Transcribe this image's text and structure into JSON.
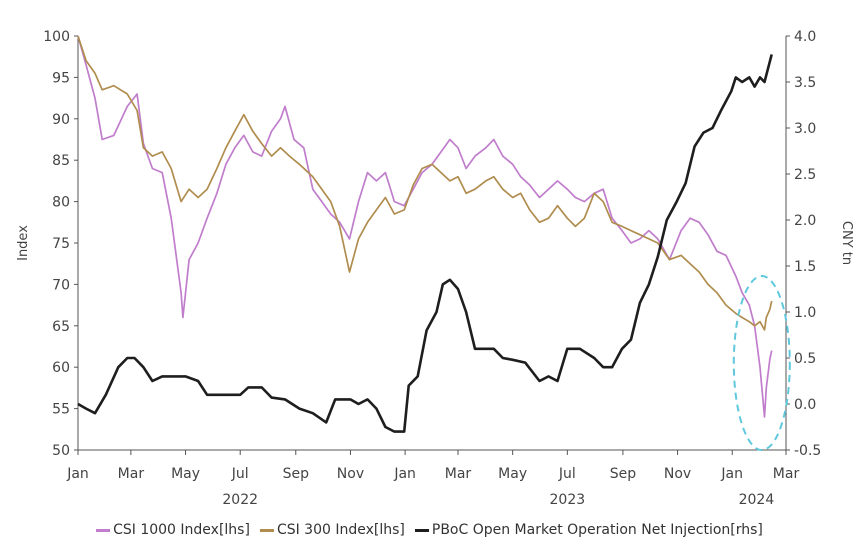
{
  "chart_data": {
    "type": "line",
    "title": "",
    "ylabel_left": "Index",
    "ylabel_right": "CNY tn",
    "ylim_left": [
      50,
      100
    ],
    "ylim_right": [
      -0.5,
      4.0
    ],
    "yticks_left": [
      "100",
      "95",
      "90",
      "85",
      "80",
      "75",
      "70",
      "65",
      "60",
      "55",
      "50"
    ],
    "yticks_right": [
      "4.0",
      "3.5",
      "3.0",
      "2.5",
      "2.0",
      "1.5",
      "1.0",
      "0.5",
      "0.0",
      "-0.5"
    ],
    "xticks": [
      "Jan",
      "Mar",
      "May",
      "Jul",
      "Sep",
      "Nov",
      "Jan",
      "Mar",
      "May",
      "Jul",
      "Sep",
      "Nov",
      "Jan",
      "Mar"
    ],
    "year_labels": [
      "2022",
      "2023",
      "2024"
    ],
    "xlim": [
      "2022-01-01",
      "2024-03-01"
    ],
    "grid": false,
    "legend_position": "bottom",
    "highlight": "dashed ellipse around Jan–Feb 2024",
    "series": [
      {
        "name": "CSI 1000 Index[lhs]",
        "axis": "left",
        "color": "#c07dcc",
        "points": [
          [
            "2022-01-01",
            100
          ],
          [
            "2022-01-10",
            96.5
          ],
          [
            "2022-01-20",
            92.5
          ],
          [
            "2022-01-28",
            87.5
          ],
          [
            "2022-02-10",
            88
          ],
          [
            "2022-02-25",
            91.5
          ],
          [
            "2022-03-08",
            93
          ],
          [
            "2022-03-15",
            87
          ],
          [
            "2022-03-25",
            84
          ],
          [
            "2022-04-05",
            83.5
          ],
          [
            "2022-04-15",
            78
          ],
          [
            "2022-04-26",
            69
          ],
          [
            "2022-04-28",
            66
          ],
          [
            "2022-05-05",
            73
          ],
          [
            "2022-05-15",
            75
          ],
          [
            "2022-05-25",
            78
          ],
          [
            "2022-06-05",
            81
          ],
          [
            "2022-06-15",
            84.5
          ],
          [
            "2022-06-25",
            86.5
          ],
          [
            "2022-07-05",
            88
          ],
          [
            "2022-07-15",
            86
          ],
          [
            "2022-07-25",
            85.5
          ],
          [
            "2022-08-05",
            88.5
          ],
          [
            "2022-08-15",
            90
          ],
          [
            "2022-08-20",
            91.5
          ],
          [
            "2022-08-30",
            87.5
          ],
          [
            "2022-09-10",
            86.5
          ],
          [
            "2022-09-20",
            81.5
          ],
          [
            "2022-09-30",
            80
          ],
          [
            "2022-10-10",
            78.5
          ],
          [
            "2022-10-20",
            77.5
          ],
          [
            "2022-10-31",
            75.5
          ],
          [
            "2022-11-10",
            80
          ],
          [
            "2022-11-20",
            83.5
          ],
          [
            "2022-11-30",
            82.5
          ],
          [
            "2022-12-10",
            83.5
          ],
          [
            "2022-12-20",
            80
          ],
          [
            "2022-12-31",
            79.5
          ],
          [
            "2023-01-10",
            81.5
          ],
          [
            "2023-01-20",
            83.5
          ],
          [
            "2023-01-31",
            84.5
          ],
          [
            "2023-02-10",
            86
          ],
          [
            "2023-02-20",
            87.5
          ],
          [
            "2023-03-01",
            86.5
          ],
          [
            "2023-03-10",
            84
          ],
          [
            "2023-03-20",
            85.5
          ],
          [
            "2023-04-01",
            86.5
          ],
          [
            "2023-04-10",
            87.5
          ],
          [
            "2023-04-20",
            85.5
          ],
          [
            "2023-05-01",
            84.5
          ],
          [
            "2023-05-10",
            83
          ],
          [
            "2023-05-20",
            82
          ],
          [
            "2023-05-31",
            80.5
          ],
          [
            "2023-06-10",
            81.5
          ],
          [
            "2023-06-20",
            82.5
          ],
          [
            "2023-07-01",
            81.5
          ],
          [
            "2023-07-10",
            80.5
          ],
          [
            "2023-07-20",
            80
          ],
          [
            "2023-07-31",
            81
          ],
          [
            "2023-08-10",
            81.5
          ],
          [
            "2023-08-20",
            78
          ],
          [
            "2023-08-31",
            76.5
          ],
          [
            "2023-09-10",
            75
          ],
          [
            "2023-09-20",
            75.5
          ],
          [
            "2023-09-30",
            76.5
          ],
          [
            "2023-10-10",
            75.5
          ],
          [
            "2023-10-23",
            73
          ],
          [
            "2023-11-05",
            76.5
          ],
          [
            "2023-11-15",
            78
          ],
          [
            "2023-11-25",
            77.5
          ],
          [
            "2023-12-05",
            76
          ],
          [
            "2023-12-15",
            74
          ],
          [
            "2023-12-25",
            73.5
          ],
          [
            "2024-01-05",
            71
          ],
          [
            "2024-01-12",
            69
          ],
          [
            "2024-01-20",
            67.5
          ],
          [
            "2024-01-26",
            65
          ],
          [
            "2024-02-01",
            60
          ],
          [
            "2024-02-06",
            54
          ],
          [
            "2024-02-08",
            57.5
          ],
          [
            "2024-02-12",
            61
          ],
          [
            "2024-02-14",
            62
          ]
        ]
      },
      {
        "name": "CSI 300 Index[lhs]",
        "axis": "left",
        "color": "#b08d4e",
        "points": [
          [
            "2022-01-01",
            100
          ],
          [
            "2022-01-10",
            97
          ],
          [
            "2022-01-20",
            95.5
          ],
          [
            "2022-01-28",
            93.5
          ],
          [
            "2022-02-10",
            94
          ],
          [
            "2022-02-25",
            93
          ],
          [
            "2022-03-08",
            91
          ],
          [
            "2022-03-15",
            86.5
          ],
          [
            "2022-03-25",
            85.5
          ],
          [
            "2022-04-05",
            86
          ],
          [
            "2022-04-15",
            84
          ],
          [
            "2022-04-26",
            80
          ],
          [
            "2022-05-05",
            81.5
          ],
          [
            "2022-05-15",
            80.5
          ],
          [
            "2022-05-25",
            81.5
          ],
          [
            "2022-06-05",
            84
          ],
          [
            "2022-06-15",
            86.5
          ],
          [
            "2022-06-25",
            88.5
          ],
          [
            "2022-07-05",
            90.5
          ],
          [
            "2022-07-15",
            88.5
          ],
          [
            "2022-07-25",
            87
          ],
          [
            "2022-08-05",
            85.5
          ],
          [
            "2022-08-15",
            86.5
          ],
          [
            "2022-08-25",
            85.5
          ],
          [
            "2022-09-05",
            84.5
          ],
          [
            "2022-09-20",
            83
          ],
          [
            "2022-09-30",
            81.5
          ],
          [
            "2022-10-10",
            80
          ],
          [
            "2022-10-20",
            77
          ],
          [
            "2022-10-31",
            71.5
          ],
          [
            "2022-11-10",
            75.5
          ],
          [
            "2022-11-20",
            77.5
          ],
          [
            "2022-11-30",
            79
          ],
          [
            "2022-12-10",
            80.5
          ],
          [
            "2022-12-20",
            78.5
          ],
          [
            "2022-12-31",
            79
          ],
          [
            "2023-01-10",
            82
          ],
          [
            "2023-01-20",
            84
          ],
          [
            "2023-01-31",
            84.5
          ],
          [
            "2023-02-10",
            83.5
          ],
          [
            "2023-02-20",
            82.5
          ],
          [
            "2023-03-01",
            83
          ],
          [
            "2023-03-10",
            81
          ],
          [
            "2023-03-20",
            81.5
          ],
          [
            "2023-04-01",
            82.5
          ],
          [
            "2023-04-10",
            83
          ],
          [
            "2023-04-20",
            81.5
          ],
          [
            "2023-05-01",
            80.5
          ],
          [
            "2023-05-10",
            81
          ],
          [
            "2023-05-20",
            79
          ],
          [
            "2023-05-31",
            77.5
          ],
          [
            "2023-06-10",
            78
          ],
          [
            "2023-06-20",
            79.5
          ],
          [
            "2023-07-01",
            78
          ],
          [
            "2023-07-10",
            77
          ],
          [
            "2023-07-20",
            78
          ],
          [
            "2023-07-31",
            81
          ],
          [
            "2023-08-10",
            80
          ],
          [
            "2023-08-20",
            77.5
          ],
          [
            "2023-08-31",
            77
          ],
          [
            "2023-09-10",
            76.5
          ],
          [
            "2023-09-20",
            76
          ],
          [
            "2023-09-30",
            75.5
          ],
          [
            "2023-10-10",
            75
          ],
          [
            "2023-10-23",
            73
          ],
          [
            "2023-11-05",
            73.5
          ],
          [
            "2023-11-15",
            72.5
          ],
          [
            "2023-11-25",
            71.5
          ],
          [
            "2023-12-05",
            70
          ],
          [
            "2023-12-15",
            69
          ],
          [
            "2023-12-25",
            67.5
          ],
          [
            "2024-01-05",
            66.5
          ],
          [
            "2024-01-12",
            66
          ],
          [
            "2024-01-20",
            65.5
          ],
          [
            "2024-01-26",
            65
          ],
          [
            "2024-02-01",
            65.5
          ],
          [
            "2024-02-06",
            64.5
          ],
          [
            "2024-02-08",
            66
          ],
          [
            "2024-02-12",
            67
          ],
          [
            "2024-02-14",
            68
          ]
        ]
      },
      {
        "name": "PBoC Open Market Operation Net Injection[rhs]",
        "axis": "right",
        "color": "#1e1e1e",
        "points": [
          [
            "2022-01-01",
            0
          ],
          [
            "2022-01-10",
            -0.05
          ],
          [
            "2022-01-20",
            -0.1
          ],
          [
            "2022-02-01",
            0.1
          ],
          [
            "2022-02-15",
            0.4
          ],
          [
            "2022-02-25",
            0.5
          ],
          [
            "2022-03-05",
            0.5
          ],
          [
            "2022-03-15",
            0.4
          ],
          [
            "2022-03-25",
            0.25
          ],
          [
            "2022-04-05",
            0.3
          ],
          [
            "2022-04-15",
            0.3
          ],
          [
            "2022-05-01",
            0.3
          ],
          [
            "2022-05-15",
            0.25
          ],
          [
            "2022-05-25",
            0.1
          ],
          [
            "2022-06-15",
            0.1
          ],
          [
            "2022-07-01",
            0.1
          ],
          [
            "2022-07-10",
            0.18
          ],
          [
            "2022-07-25",
            0.18
          ],
          [
            "2022-08-05",
            0.07
          ],
          [
            "2022-08-20",
            0.05
          ],
          [
            "2022-09-05",
            -0.05
          ],
          [
            "2022-09-20",
            -0.1
          ],
          [
            "2022-10-05",
            -0.2
          ],
          [
            "2022-10-15",
            0.05
          ],
          [
            "2022-10-25",
            0.05
          ],
          [
            "2022-11-01",
            0.05
          ],
          [
            "2022-11-10",
            0
          ],
          [
            "2022-11-20",
            0.05
          ],
          [
            "2022-11-30",
            -0.05
          ],
          [
            "2022-12-10",
            -0.25
          ],
          [
            "2022-12-20",
            -0.3
          ],
          [
            "2022-12-31",
            -0.3
          ],
          [
            "2023-01-05",
            0.2
          ],
          [
            "2023-01-15",
            0.3
          ],
          [
            "2023-01-25",
            0.8
          ],
          [
            "2023-02-05",
            1.0
          ],
          [
            "2023-02-12",
            1.3
          ],
          [
            "2023-02-20",
            1.35
          ],
          [
            "2023-03-01",
            1.25
          ],
          [
            "2023-03-10",
            1.0
          ],
          [
            "2023-03-20",
            0.6
          ],
          [
            "2023-04-01",
            0.6
          ],
          [
            "2023-04-10",
            0.6
          ],
          [
            "2023-04-20",
            0.5
          ],
          [
            "2023-05-01",
            0.48
          ],
          [
            "2023-05-15",
            0.45
          ],
          [
            "2023-05-31",
            0.25
          ],
          [
            "2023-06-10",
            0.3
          ],
          [
            "2023-06-20",
            0.25
          ],
          [
            "2023-07-01",
            0.6
          ],
          [
            "2023-07-15",
            0.6
          ],
          [
            "2023-07-31",
            0.5
          ],
          [
            "2023-08-10",
            0.4
          ],
          [
            "2023-08-20",
            0.4
          ],
          [
            "2023-08-31",
            0.6
          ],
          [
            "2023-09-10",
            0.7
          ],
          [
            "2023-09-20",
            1.1
          ],
          [
            "2023-09-30",
            1.3
          ],
          [
            "2023-10-10",
            1.6
          ],
          [
            "2023-10-20",
            2.0
          ],
          [
            "2023-10-31",
            2.2
          ],
          [
            "2023-11-10",
            2.4
          ],
          [
            "2023-11-20",
            2.8
          ],
          [
            "2023-11-30",
            2.95
          ],
          [
            "2023-12-10",
            3.0
          ],
          [
            "2023-12-20",
            3.2
          ],
          [
            "2023-12-31",
            3.4
          ],
          [
            "2024-01-05",
            3.55
          ],
          [
            "2024-01-12",
            3.5
          ],
          [
            "2024-01-20",
            3.55
          ],
          [
            "2024-01-26",
            3.45
          ],
          [
            "2024-02-01",
            3.55
          ],
          [
            "2024-02-06",
            3.5
          ],
          [
            "2024-02-10",
            3.65
          ],
          [
            "2024-02-14",
            3.8
          ]
        ]
      }
    ]
  }
}
